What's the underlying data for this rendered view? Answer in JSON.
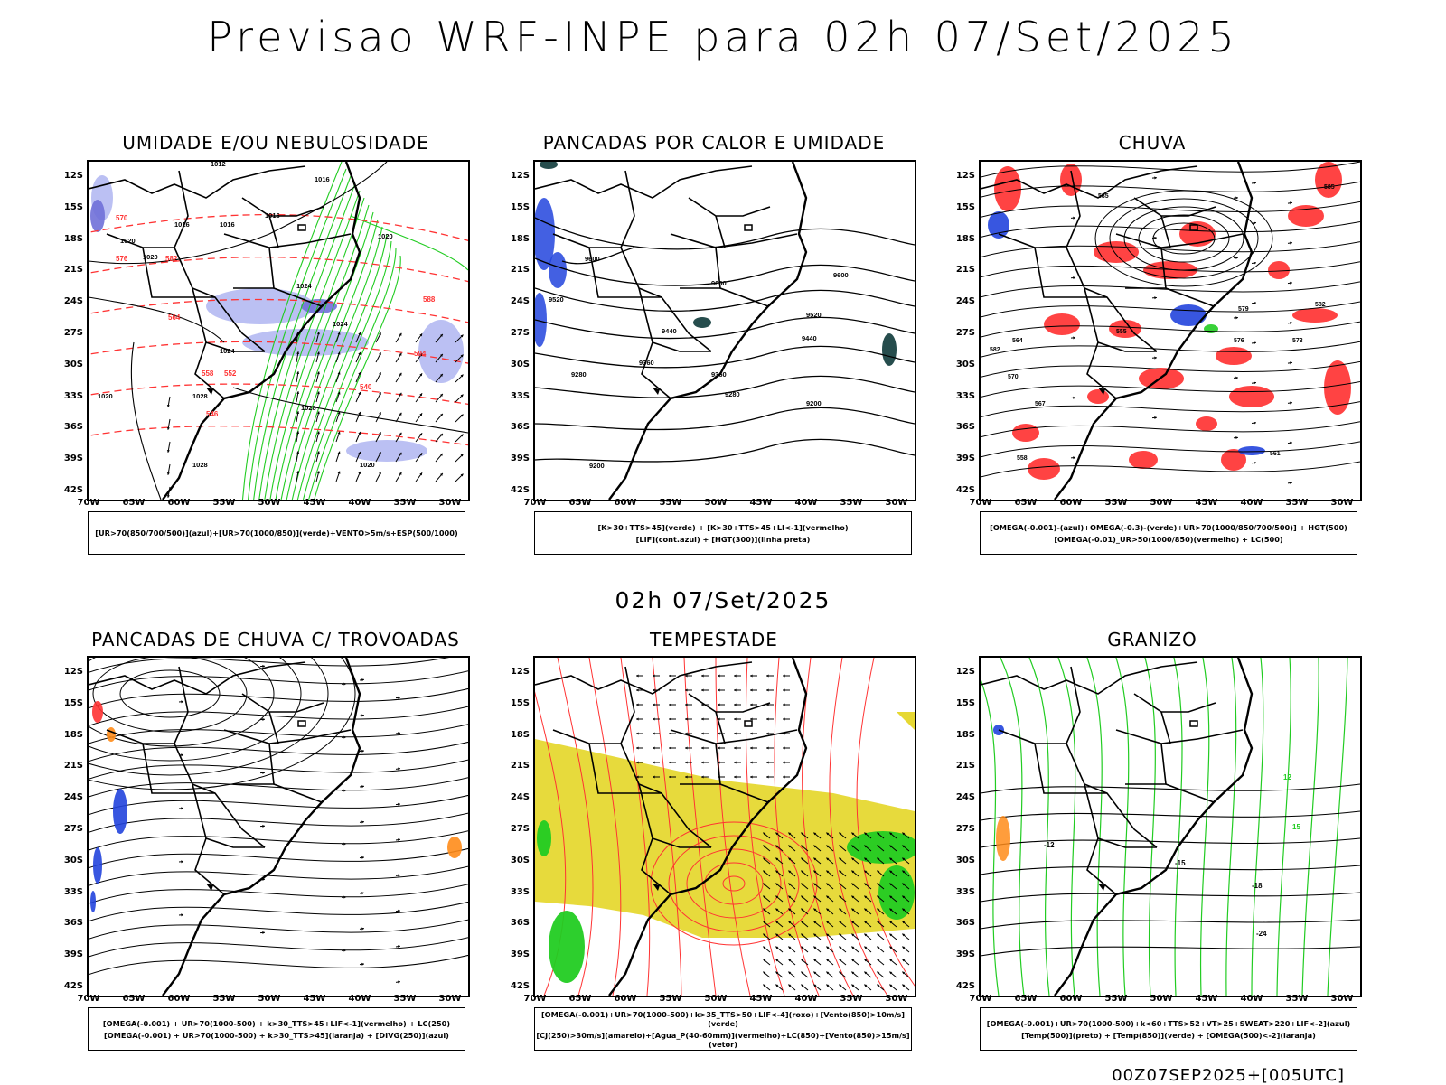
{
  "header": {
    "title": "Previsao WRF-INPE  para 02h 07/Set/2025"
  },
  "mid_title": "02h 07/Set/2025",
  "stamp": "00Z07SEP2025+[005UTC]",
  "lat_labels": [
    "12S",
    "15S",
    "18S",
    "21S",
    "24S",
    "27S",
    "30S",
    "33S",
    "36S",
    "39S",
    "42S"
  ],
  "lon_labels": [
    "70W",
    "65W",
    "60W",
    "55W",
    "50W",
    "45W",
    "40W",
    "35W",
    "30W"
  ],
  "panels": [
    {
      "title": "UMIDADE E/OU NEBULOSIDADE",
      "legend": [
        "[UR>70(850/700/500)](azul)+[UR>70(1000/850)](verde)+VENTO>5m/s+ESP(500/1000)"
      ]
    },
    {
      "title": "PANCADAS POR CALOR E UMIDADE",
      "legend": [
        "[K>30+TTS>45](verde)  +  [K>30+TTS>45+LI<-1](vermelho)",
        "[LIF](cont.azul)  +  [HGT(300)](linha preta)"
      ]
    },
    {
      "title": "CHUVA",
      "legend": [
        "[OMEGA(-0.001)-(azul)+OMEGA(-0.3)-(verde)+UR>70(1000/850/700/500)]  +  HGT(500)",
        "[OMEGA(-0.01)_UR>50(1000/850)(vermelho)  +  LC(500)"
      ]
    },
    {
      "title": "PANCADAS DE CHUVA C/ TROVOADAS",
      "legend": [
        "[OMEGA(-0.001)  +  UR>70(1000-500)  +  k>30_TTS>45+LIF<-1](vermelho)  +  LC(250)",
        "[OMEGA(-0.001)  +  UR>70(1000-500)  +  k>30_TTS>45](laranja)  +  [DIVG(250)](azul)"
      ]
    },
    {
      "title": "TEMPESTADE",
      "legend": [
        "[OMEGA(-0.001)+UR>70(1000-500)+k>35_TTS>50+LIF<-4](roxo)+[Vento(850)>10m/s](verde)",
        "[CJ(250)>30m/s](amarelo)+[Agua_P(40-60mm)](vermelho)+LC(850)+[Vento(850)>15m/s](vetor)"
      ]
    },
    {
      "title": "GRANIZO",
      "legend": [
        "[OMEGA(-0.001)+UR>70(1000-500)+k<60+TTS>52+VT>25+SWEAT>220+LIF<-2](azul)",
        "[Temp(500)](preto)  +  [Temp(850)](verde)  +  [OMEGA(500)<-2](laranja)"
      ]
    }
  ],
  "map_labels": {
    "p1": [
      "1012",
      "1016",
      "1016",
      "1016",
      "1016",
      "1020",
      "1020",
      "1020",
      "1020",
      "1024",
      "1024",
      "1024",
      "1028",
      "1028",
      "1028",
      "1020",
      "570",
      "576",
      "582",
      "564",
      "558",
      "552",
      "546",
      "540",
      "588",
      "594"
    ],
    "p2": [
      "9600",
      "9600",
      "9520",
      "9520",
      "9440",
      "9440",
      "9360",
      "9360",
      "9280",
      "9280",
      "9200",
      "9200",
      "9600"
    ],
    "p3": [
      "585",
      "582",
      "579",
      "576",
      "573",
      "570",
      "567",
      "564",
      "561",
      "558",
      "555",
      "585",
      "582"
    ],
    "p6": [
      "-12",
      "-15",
      "-18",
      "-24",
      "12",
      "15"
    ]
  },
  "colors": {
    "green": "#22cc22",
    "red": "#ff3333",
    "blue": "#2244dd",
    "lightblue": "#aab0f0",
    "yellow": "#e6d832",
    "orange": "#ff8c1a"
  }
}
